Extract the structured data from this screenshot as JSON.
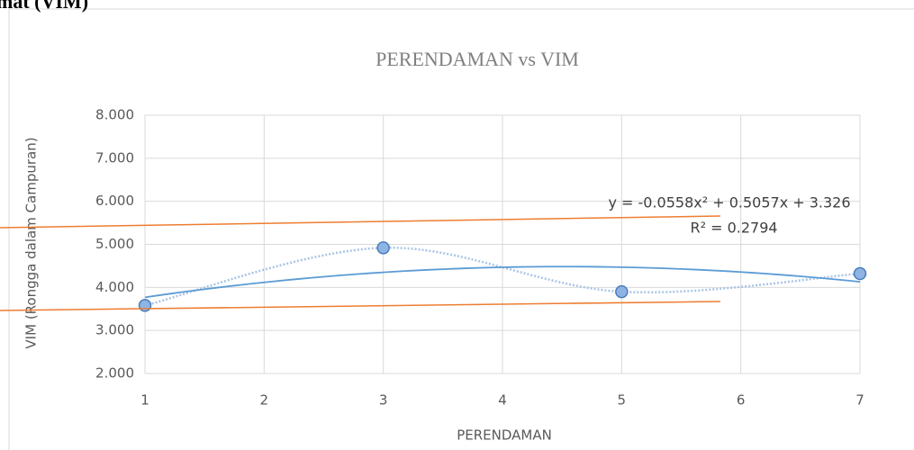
{
  "page_heading": "mat (VIM)",
  "chart_data": {
    "type": "scatter",
    "title": "PERENDAMAN vs VIM",
    "x_label": "PERENDAMAN",
    "y_label": "VIM (Rongga dalam Campuran)",
    "series": [
      {
        "name": "VIM",
        "color": "#5b9bd5",
        "x": [
          1,
          3,
          5,
          7
        ],
        "values": [
          3.58,
          4.92,
          3.9,
          4.32
        ]
      }
    ],
    "xlim": [
      1,
      7
    ],
    "xticks": [
      1,
      2,
      3,
      4,
      5,
      6,
      7
    ],
    "ylim": [
      2,
      8
    ],
    "yticks": [
      {
        "value": 2,
        "label": "2.000"
      },
      {
        "value": 3,
        "label": "3.000"
      },
      {
        "value": 4,
        "label": "4.000"
      },
      {
        "value": 5,
        "label": "5.000"
      },
      {
        "value": 6,
        "label": "6.000"
      },
      {
        "value": 7,
        "label": "7.000"
      },
      {
        "value": 8,
        "label": "8.000"
      }
    ],
    "grid": true,
    "trendline": {
      "type": "polynomial",
      "order": 2,
      "equation": "y = -0.0558x² + 0.5057x + 3.326",
      "r_squared": "R² = 0.2794"
    }
  }
}
